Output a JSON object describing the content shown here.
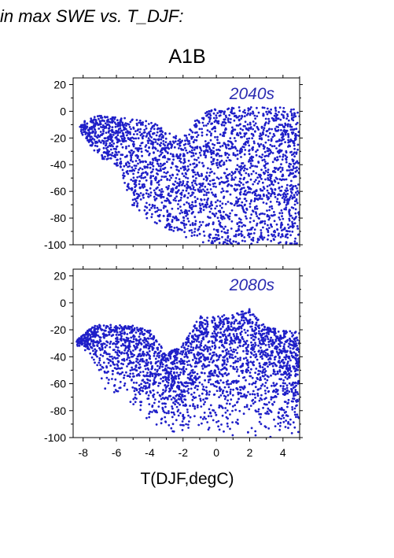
{
  "page": {
    "title": "in max SWE vs. T_DJF:"
  },
  "figure": {
    "scenario_title": "A1B",
    "xlabel": "T(DJF,degC)"
  },
  "colors": {
    "points": "#1f1fc8",
    "annotation": "#2a2ab0",
    "axes": "#000000"
  },
  "chart_data": [
    {
      "type": "scatter",
      "title": "A1B",
      "annotation": "2040s",
      "xlabel": "",
      "ylabel": "",
      "xlim": [
        -8.6,
        5.0
      ],
      "ylim": [
        -100,
        25
      ],
      "xticks": [
        -8,
        -6,
        -4,
        -2,
        0,
        2,
        4
      ],
      "yticks": [
        20,
        0,
        -20,
        -40,
        -60,
        -80,
        -100
      ],
      "grid": false,
      "x_tick_labels_shown": false,
      "point_cloud_envelope": [
        {
          "x": -8.2,
          "y_top": -8,
          "y_bottom": -15
        },
        {
          "x": -7.0,
          "y_top": -3,
          "y_bottom": -35
        },
        {
          "x": -6.0,
          "y_top": -4,
          "y_bottom": -40
        },
        {
          "x": -5.0,
          "y_top": -6,
          "y_bottom": -72
        },
        {
          "x": -4.0,
          "y_top": -7,
          "y_bottom": -82
        },
        {
          "x": -3.0,
          "y_top": -14,
          "y_bottom": -88
        },
        {
          "x": -2.0,
          "y_top": -20,
          "y_bottom": -94
        },
        {
          "x": -1.0,
          "y_top": -2,
          "y_bottom": -98
        },
        {
          "x": 0.0,
          "y_top": 2,
          "y_bottom": -100
        },
        {
          "x": 1.0,
          "y_top": 3,
          "y_bottom": -100
        },
        {
          "x": 2.0,
          "y_top": 3,
          "y_bottom": -100
        },
        {
          "x": 3.0,
          "y_top": 3,
          "y_bottom": -100
        },
        {
          "x": 4.0,
          "y_top": 3,
          "y_bottom": -100
        },
        {
          "x": 5.0,
          "y_top": 2,
          "y_bottom": -100
        }
      ]
    },
    {
      "type": "scatter",
      "title": "",
      "annotation": "2080s",
      "xlabel": "T(DJF,degC)",
      "ylabel": "",
      "xlim": [
        -8.6,
        5.0
      ],
      "ylim": [
        -100,
        25
      ],
      "xticks": [
        -8,
        -6,
        -4,
        -2,
        0,
        2,
        4
      ],
      "yticks": [
        20,
        0,
        -20,
        -40,
        -60,
        -80,
        -100
      ],
      "grid": false,
      "x_tick_labels_shown": true,
      "point_cloud_envelope": [
        {
          "x": -8.4,
          "y_top": -28,
          "y_bottom": -32
        },
        {
          "x": -7.5,
          "y_top": -18,
          "y_bottom": -40
        },
        {
          "x": -7.0,
          "y_top": -16,
          "y_bottom": -62
        },
        {
          "x": -6.0,
          "y_top": -16,
          "y_bottom": -70
        },
        {
          "x": -5.0,
          "y_top": -17,
          "y_bottom": -80
        },
        {
          "x": -4.0,
          "y_top": -20,
          "y_bottom": -92
        },
        {
          "x": -3.0,
          "y_top": -38,
          "y_bottom": -96
        },
        {
          "x": -2.0,
          "y_top": -30,
          "y_bottom": -98
        },
        {
          "x": -1.0,
          "y_top": -10,
          "y_bottom": -100
        },
        {
          "x": 0.0,
          "y_top": -10,
          "y_bottom": -100
        },
        {
          "x": 1.0,
          "y_top": -8,
          "y_bottom": -100
        },
        {
          "x": 2.0,
          "y_top": -4,
          "y_bottom": -100
        },
        {
          "x": 3.0,
          "y_top": -18,
          "y_bottom": -100
        },
        {
          "x": 4.0,
          "y_top": -20,
          "y_bottom": -100
        },
        {
          "x": 5.0,
          "y_top": -22,
          "y_bottom": -100
        }
      ]
    }
  ]
}
